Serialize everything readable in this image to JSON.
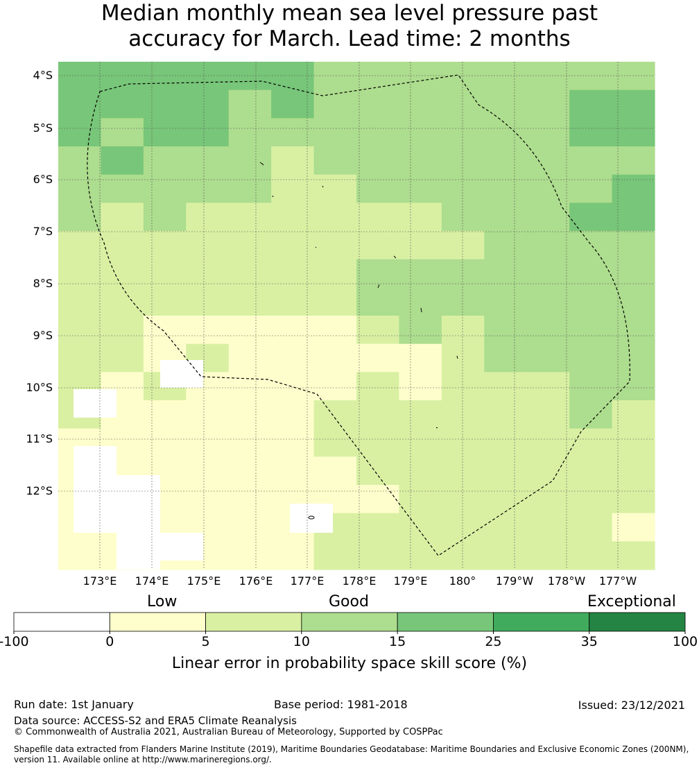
{
  "title": {
    "line1": "Median monthly mean sea level pressure past",
    "line2": "accuracy for March. Lead time: 2 months"
  },
  "map": {
    "lat_labels": [
      "4°S",
      "5°S",
      "6°S",
      "7°S",
      "8°S",
      "9°S",
      "10°S",
      "11°S",
      "12°S"
    ],
    "lon_labels": [
      "173°E",
      "174°E",
      "175°E",
      "176°E",
      "177°E",
      "178°E",
      "179°E",
      "180°",
      "179°W",
      "178°W",
      "177°W"
    ],
    "grid_rows": [
      [
        3,
        3,
        3,
        3,
        3,
        3,
        2,
        2,
        2,
        2,
        2,
        2,
        2,
        2
      ],
      [
        3,
        3,
        3,
        3,
        2,
        3,
        2,
        2,
        2,
        2,
        2,
        2,
        3,
        3
      ],
      [
        3,
        2,
        3,
        3,
        2,
        2,
        2,
        2,
        2,
        2,
        2,
        2,
        3,
        3
      ],
      [
        2,
        3,
        2,
        2,
        2,
        1,
        2,
        2,
        2,
        2,
        2,
        2,
        2,
        2
      ],
      [
        2,
        2,
        2,
        2,
        2,
        1,
        1,
        2,
        2,
        2,
        2,
        2,
        2,
        3
      ],
      [
        2,
        1,
        2,
        1,
        1,
        1,
        1,
        1,
        1,
        2,
        2,
        2,
        3,
        3
      ],
      [
        1,
        1,
        1,
        1,
        1,
        1,
        1,
        1,
        1,
        1,
        2,
        2,
        2,
        2
      ],
      [
        1,
        1,
        1,
        1,
        1,
        1,
        1,
        2,
        2,
        2,
        2,
        2,
        2,
        2
      ],
      [
        1,
        1,
        1,
        1,
        1,
        1,
        1,
        2,
        2,
        2,
        2,
        2,
        2,
        2
      ],
      [
        1,
        1,
        0,
        0,
        0,
        0,
        0,
        1,
        2,
        1,
        2,
        2,
        2,
        2
      ],
      [
        1,
        1,
        0,
        1,
        0,
        0,
        0,
        0,
        0,
        1,
        2,
        2,
        2,
        2
      ],
      [
        1,
        0,
        1,
        0,
        0,
        0,
        0,
        1,
        0,
        1,
        1,
        1,
        2,
        2
      ],
      [
        1,
        0,
        0,
        0,
        0,
        0,
        1,
        1,
        1,
        1,
        1,
        1,
        2,
        1
      ],
      [
        0,
        0,
        0,
        0,
        0,
        0,
        1,
        1,
        1,
        1,
        1,
        1,
        1,
        1
      ],
      [
        0,
        0,
        0,
        0,
        0,
        0,
        0,
        1,
        1,
        1,
        1,
        1,
        1,
        1
      ],
      [
        0,
        0,
        0,
        0,
        0,
        0,
        0,
        0,
        1,
        1,
        1,
        1,
        1,
        1
      ],
      [
        0,
        0,
        0,
        0,
        0,
        0,
        1,
        1,
        1,
        1,
        1,
        1,
        1,
        0
      ],
      [
        0,
        0,
        0,
        0,
        0,
        0,
        1,
        1,
        1,
        1,
        1,
        1,
        1,
        1
      ]
    ],
    "colors": [
      "#fefecc",
      "#d9f0a3",
      "#addd8e",
      "#78c679",
      "#41ab5d",
      "#238443"
    ]
  },
  "colorbar": {
    "categories": [
      "Low",
      "Good",
      "Exceptional"
    ],
    "ticks": [
      "-100",
      "0",
      "5",
      "10",
      "15",
      "25",
      "35",
      "100"
    ],
    "colors": [
      "#ffffff",
      "#fefecc",
      "#d9f0a3",
      "#addd8e",
      "#78c679",
      "#41ab5d",
      "#238443"
    ],
    "label": "Linear error in probability space skill score (%)"
  },
  "footer": {
    "run_date": "Run date: 1st January",
    "base_period": "Base period: 1981-2018",
    "issued": "Issued: 23/12/2021",
    "data_source": "Data source: ACCESS-S2 and ERA5 Climate Reanalysis",
    "copyright": "© Commonwealth of Australia 2021, Australian Bureau of Meteorology, Supported by COSPPac",
    "shapefile_1": "Shapefile data extracted from Flanders Marine Institute (2019), Maritime Boundaries Geodatabase: Maritime Boundaries and Exclusive Economic Zones (200NM),",
    "shapefile_2": "version 11. Available online at http://www.marineregions.org/."
  }
}
